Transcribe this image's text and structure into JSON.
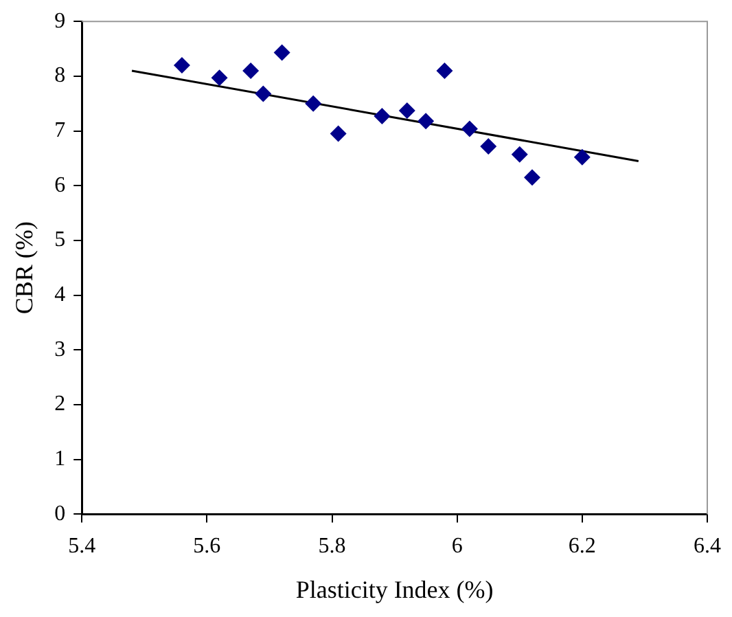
{
  "chart_data": {
    "type": "scatter",
    "xlabel": "Plasticity Index (%)",
    "ylabel": "CBR (%)",
    "xlim": [
      5.4,
      6.4
    ],
    "xticks": [
      5.4,
      5.6,
      5.8,
      6,
      6.2,
      6.4
    ],
    "ylim": [
      0,
      9
    ],
    "yticks": [
      0,
      1,
      2,
      3,
      4,
      5,
      6,
      7,
      8,
      9
    ],
    "grid": false,
    "legend": false,
    "marker": "diamond",
    "series": [
      {
        "color": "#00008b",
        "x": [
          5.56,
          5.62,
          5.67,
          5.69,
          5.72,
          5.77,
          5.81,
          5.88,
          5.92,
          5.95,
          5.98,
          6.02,
          6.05,
          6.1,
          6.12,
          6.2
        ],
        "values": [
          8.2,
          7.97,
          8.1,
          7.68,
          8.43,
          7.5,
          6.95,
          7.27,
          7.37,
          7.18,
          8.1,
          7.04,
          6.72,
          6.57,
          6.15,
          6.52
        ]
      },
      {
        "type": "line",
        "color": "#000000",
        "marker": "none",
        "x": [
          5.48,
          6.29
        ],
        "values": [
          8.1,
          6.45
        ]
      }
    ]
  }
}
